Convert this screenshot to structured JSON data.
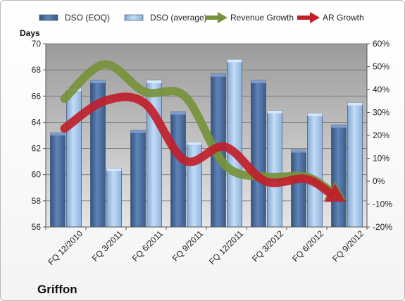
{
  "chart_data": {
    "type": "bar",
    "title": "",
    "company_label": "Griffon",
    "ylabel_left": "Days",
    "ylabel_right": "",
    "categories": [
      "FQ 12/2010",
      "FQ 3/2011",
      "FQ 6/2011",
      "FQ 9/2011",
      "FQ 12/2011",
      "FQ 3/2012",
      "FQ 6/2012",
      "FQ 9/2012"
    ],
    "ylim_left": [
      56,
      70
    ],
    "ylim_right": [
      -20,
      60
    ],
    "yticks_left": [
      "56",
      "58",
      "60",
      "62",
      "64",
      "66",
      "68",
      "70"
    ],
    "yticks_right": [
      "-20%",
      "-10%",
      "0%",
      "10%",
      "20%",
      "30%",
      "40%",
      "50%",
      "60%"
    ],
    "grid": true,
    "legend_position": "top",
    "series": [
      {
        "name": "DSO (EOQ)",
        "type": "bar",
        "axis": "left",
        "color": "#4a6ea4",
        "values": [
          63.2,
          67.2,
          63.4,
          64.8,
          67.7,
          67.2,
          61.9,
          63.8
        ]
      },
      {
        "name": "DSO (average)",
        "type": "bar",
        "axis": "left",
        "color": "#a8c8ee",
        "values": [
          66.6,
          60.5,
          67.2,
          62.5,
          68.8,
          64.9,
          64.7,
          65.5
        ]
      },
      {
        "name": "Revenue Growth",
        "type": "line-arrow",
        "axis": "right",
        "color": "#76923c",
        "values": [
          36,
          51,
          39,
          37,
          7,
          2,
          2,
          -8
        ]
      },
      {
        "name": "AR Growth",
        "type": "line-arrow",
        "axis": "right",
        "color": "#c0202a",
        "values": [
          23,
          35,
          34,
          9,
          15,
          0,
          1,
          -9
        ]
      }
    ]
  }
}
